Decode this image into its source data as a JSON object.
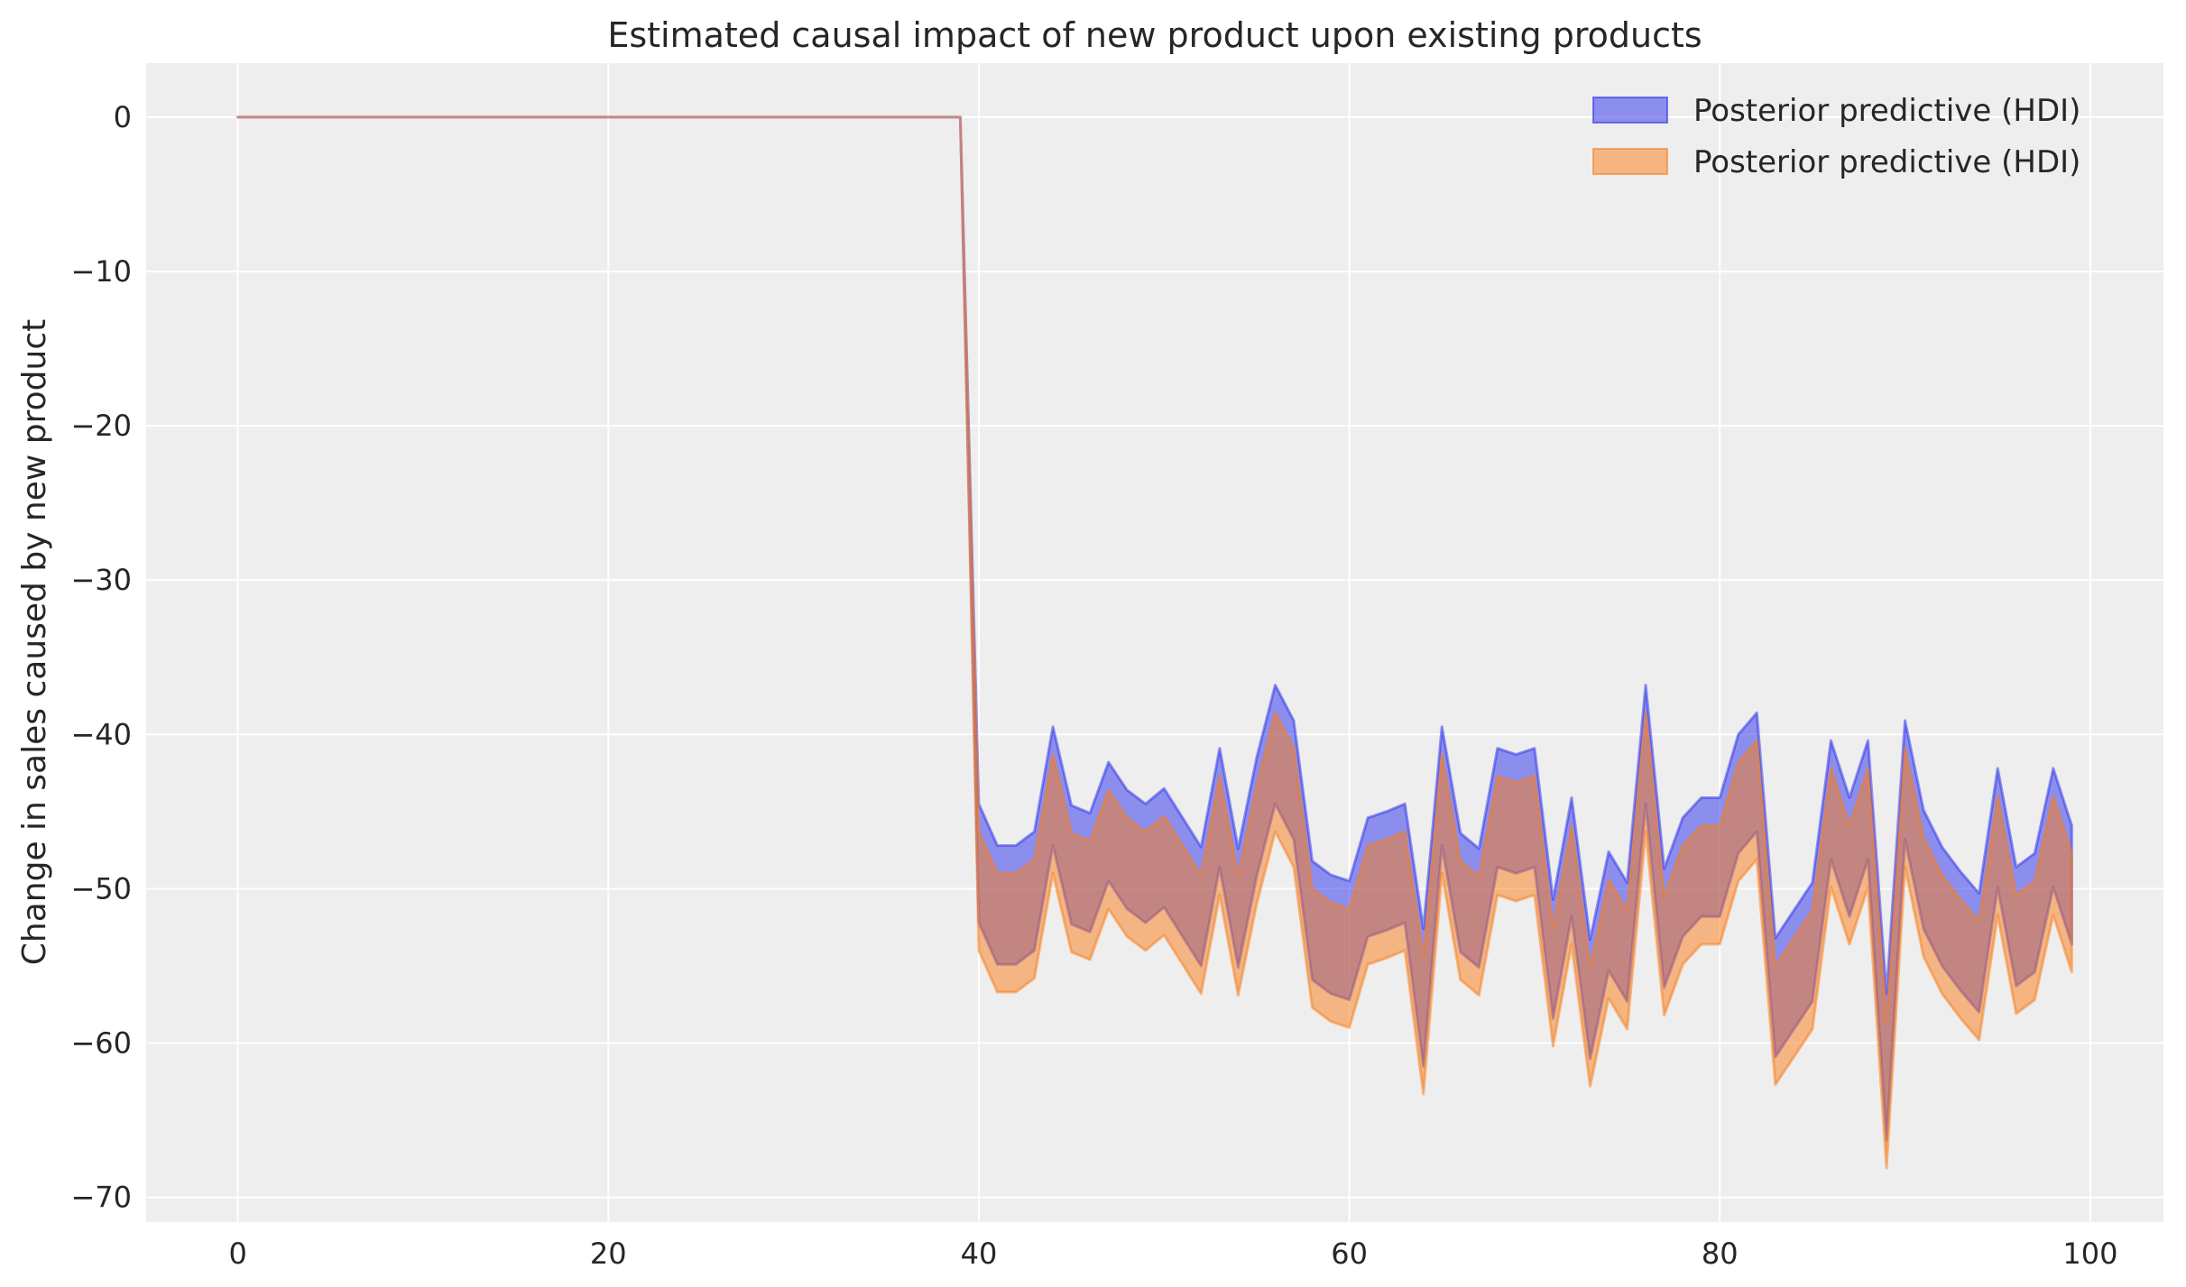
{
  "chart_data": {
    "type": "area",
    "title": "Estimated causal impact of new product upon existing products",
    "xlabel": "",
    "ylabel": "Change in sales caused by new product",
    "xlim": [
      -4.95,
      103.95
    ],
    "ylim": [
      -71.6,
      3.5
    ],
    "xticks": [
      0,
      20,
      40,
      60,
      80,
      100
    ],
    "yticks": [
      0,
      -10,
      -20,
      -30,
      -40,
      -50,
      -60,
      -70
    ],
    "xtick_labels": [
      "0",
      "20",
      "40",
      "60",
      "80",
      "100"
    ],
    "ytick_labels": [
      "0",
      "−10",
      "−20",
      "−30",
      "−40",
      "−50",
      "−60",
      "−70"
    ],
    "grid": true,
    "legend_position": "top-right",
    "x_start": 0,
    "x_end": 99,
    "series": [
      {
        "name": "Posterior predictive (HDI)",
        "color": "#2a2eec",
        "upper": [
          0,
          0,
          0,
          0,
          0,
          0,
          0,
          0,
          0,
          0,
          0,
          0,
          0,
          0,
          0,
          0,
          0,
          0,
          0,
          0,
          0,
          0,
          0,
          0,
          0,
          0,
          0,
          0,
          0,
          0,
          0,
          0,
          0,
          0,
          0,
          0,
          0,
          0,
          0,
          0,
          -44.5,
          -47.2,
          -47.2,
          -46.3,
          -39.5,
          -44.6,
          -45.1,
          -41.8,
          -43.6,
          -44.5,
          -43.5,
          -45.4,
          -47.3,
          -40.9,
          -47.4,
          -41.5,
          -36.8,
          -39.1,
          -48.2,
          -49.1,
          -49.5,
          -45.4,
          -45.0,
          -44.5,
          -52.6,
          -39.5,
          -46.4,
          -47.4,
          -40.9,
          -41.3,
          -40.9,
          -50.7,
          -44.1,
          -53.3,
          -47.6,
          -49.6,
          -36.8,
          -48.7,
          -45.4,
          -44.1,
          -44.1,
          -40.0,
          -38.6,
          -53.2,
          -51.4,
          -49.6,
          -40.4,
          -44.1,
          -40.4,
          -56.8,
          -39.1,
          -44.9,
          -47.3,
          -48.9,
          -50.3,
          -42.2,
          -48.6,
          -47.7,
          -42.2,
          -45.9
        ],
        "lower": [
          0,
          0,
          0,
          0,
          0,
          0,
          0,
          0,
          0,
          0,
          0,
          0,
          0,
          0,
          0,
          0,
          0,
          0,
          0,
          0,
          0,
          0,
          0,
          0,
          0,
          0,
          0,
          0,
          0,
          0,
          0,
          0,
          0,
          0,
          0,
          0,
          0,
          0,
          0,
          0,
          -52.2,
          -54.9,
          -54.9,
          -54.0,
          -47.2,
          -52.3,
          -52.8,
          -49.5,
          -51.3,
          -52.2,
          -51.2,
          -53.1,
          -55.0,
          -48.6,
          -55.1,
          -49.2,
          -44.5,
          -46.8,
          -55.9,
          -56.8,
          -57.2,
          -53.1,
          -52.7,
          -52.2,
          -61.5,
          -47.2,
          -54.1,
          -55.1,
          -48.6,
          -49.0,
          -48.6,
          -58.4,
          -51.8,
          -61.0,
          -55.3,
          -57.3,
          -44.5,
          -56.4,
          -53.1,
          -51.8,
          -51.8,
          -47.7,
          -46.3,
          -60.9,
          -59.1,
          -57.3,
          -48.1,
          -51.8,
          -48.1,
          -66.3,
          -46.8,
          -52.6,
          -55.0,
          -56.6,
          -58.0,
          -49.9,
          -56.3,
          -55.4,
          -49.9,
          -53.6
        ]
      },
      {
        "name": "Posterior predictive (HDI)",
        "color": "#fa7c17",
        "upper": [
          0,
          0,
          0,
          0,
          0,
          0,
          0,
          0,
          0,
          0,
          0,
          0,
          0,
          0,
          0,
          0,
          0,
          0,
          0,
          0,
          0,
          0,
          0,
          0,
          0,
          0,
          0,
          0,
          0,
          0,
          0,
          0,
          0,
          0,
          0,
          0,
          0,
          0,
          0,
          0,
          -46.3,
          -49.0,
          -49.0,
          -48.1,
          -41.3,
          -46.4,
          -46.9,
          -43.6,
          -45.4,
          -46.3,
          -45.3,
          -47.2,
          -49.1,
          -42.7,
          -49.2,
          -43.3,
          -38.6,
          -40.9,
          -50.0,
          -50.9,
          -51.3,
          -47.2,
          -46.8,
          -46.3,
          -54.4,
          -41.3,
          -48.2,
          -49.2,
          -42.7,
          -43.1,
          -42.7,
          -52.5,
          -45.9,
          -55.1,
          -49.4,
          -51.4,
          -38.6,
          -50.5,
          -47.2,
          -45.9,
          -45.9,
          -41.8,
          -40.4,
          -55.0,
          -53.2,
          -51.4,
          -42.2,
          -45.9,
          -42.2,
          -58.6,
          -40.9,
          -46.7,
          -49.1,
          -50.7,
          -52.1,
          -44.0,
          -50.4,
          -49.5,
          -44.0,
          -47.7
        ],
        "lower": [
          0,
          0,
          0,
          0,
          0,
          0,
          0,
          0,
          0,
          0,
          0,
          0,
          0,
          0,
          0,
          0,
          0,
          0,
          0,
          0,
          0,
          0,
          0,
          0,
          0,
          0,
          0,
          0,
          0,
          0,
          0,
          0,
          0,
          0,
          0,
          0,
          0,
          0,
          0,
          0,
          -54.0,
          -56.7,
          -56.7,
          -55.8,
          -49.0,
          -54.1,
          -54.6,
          -51.3,
          -53.1,
          -54.0,
          -53.0,
          -54.9,
          -56.8,
          -50.4,
          -56.9,
          -51.0,
          -46.3,
          -48.6,
          -57.7,
          -58.6,
          -59.0,
          -54.9,
          -54.5,
          -54.0,
          -63.3,
          -49.0,
          -55.9,
          -56.9,
          -50.4,
          -50.8,
          -50.4,
          -60.2,
          -53.6,
          -62.8,
          -57.1,
          -59.1,
          -46.3,
          -58.2,
          -54.9,
          -53.6,
          -53.6,
          -49.5,
          -48.1,
          -62.7,
          -60.9,
          -59.1,
          -49.9,
          -53.6,
          -49.9,
          -68.1,
          -48.6,
          -54.4,
          -56.8,
          -58.4,
          -59.8,
          -51.7,
          -58.1,
          -57.2,
          -51.7,
          -55.4
        ]
      }
    ]
  }
}
